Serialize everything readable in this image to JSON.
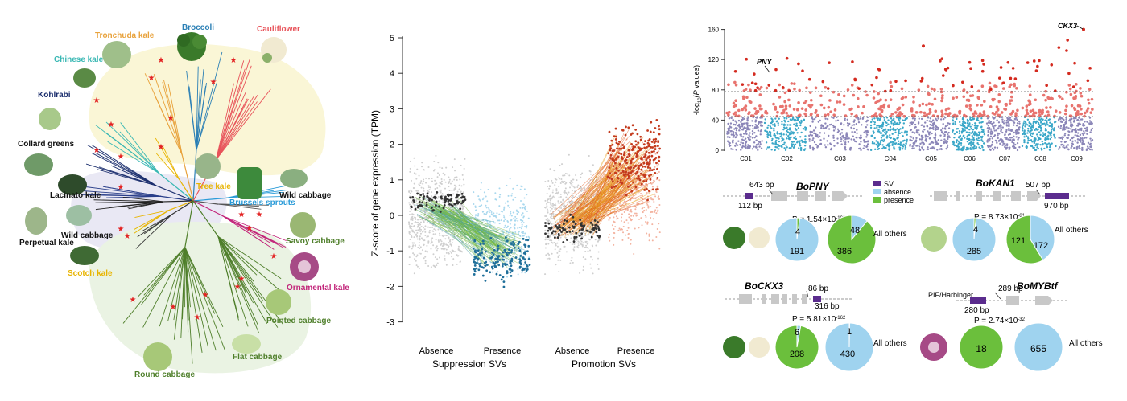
{
  "panel_a": {
    "labels": [
      {
        "text": "Tronchuda kale",
        "color": "#e8a23c"
      },
      {
        "text": "Broccoli",
        "color": "#2a7fb5"
      },
      {
        "text": "Cauliflower",
        "color": "#e8535a"
      },
      {
        "text": "Chinese kale",
        "color": "#3ab8b4"
      },
      {
        "text": "Kohlrabi",
        "color": "#1c2f6e"
      },
      {
        "text": "Collard greens",
        "color": "#111111"
      },
      {
        "text": "Tree kale",
        "color": "#e8b400"
      },
      {
        "text": "Lacinato kale",
        "color": "#111111"
      },
      {
        "text": "Brussels sprouts",
        "color": "#2a9bd8"
      },
      {
        "text": "Wild cabbage",
        "color": "#111111"
      },
      {
        "text": "Wild cabbage",
        "color": "#111111"
      },
      {
        "text": "Perpetual kale",
        "color": "#111111"
      },
      {
        "text": "Savoy cabbage",
        "color": "#4f7f2b"
      },
      {
        "text": "Scotch kale",
        "color": "#e8b400"
      },
      {
        "text": "Ornamental kale",
        "color": "#c2257a"
      },
      {
        "text": "Pointed cabbage",
        "color": "#4f7f2b"
      },
      {
        "text": "Flat cabbage",
        "color": "#4f7f2b"
      },
      {
        "text": "Round cabbage",
        "color": "#4f7f2b"
      }
    ]
  },
  "panel_b": {
    "y_ticks": [
      "5",
      "4",
      "3",
      "2",
      "1",
      "0",
      "-1",
      "-2",
      "-3"
    ],
    "ylabel": "Z-score of gene expression (TPM)",
    "sub_labels": [
      "Absence",
      "Presence",
      "Absence",
      "Presence"
    ],
    "group_labels": [
      "Suppression SVs",
      "Promotion SVs"
    ]
  },
  "panel_c": {
    "ylabel": "-log10(P values)",
    "y_ticks": [
      "160",
      "120",
      "80",
      "40",
      "0"
    ],
    "chromosomes": [
      "C01",
      "C02",
      "C03",
      "C04",
      "C05",
      "C06",
      "C07",
      "C08",
      "C09"
    ],
    "annotations": [
      "PNY",
      "CKX3"
    ],
    "colors": {
      "odd": "#8b86b8",
      "even": "#3aa7c8",
      "sig": "#e8736e",
      "top": "#d42a1f"
    }
  },
  "panel_d": {
    "legend": [
      "SV",
      "absence",
      "presence"
    ],
    "blocks": [
      {
        "gene": "BoPNY",
        "sv1": "643 bp",
        "sv2": "112 bp",
        "p": "P = 1.54×10",
        "p_exp": "-108",
        "pie1": [
          "4",
          "191"
        ],
        "pie2": [
          "48",
          "386"
        ],
        "others": "All others"
      },
      {
        "gene": "BoKAN1",
        "sv1": "507 bp",
        "sv2": "970 bp",
        "p": "P = 8.73×10",
        "p_exp": "-61",
        "pie1": [
          "4",
          "285"
        ],
        "pie2": [
          "121",
          "172"
        ],
        "others": "All others"
      },
      {
        "gene": "BoCKX3",
        "sv1": "86 bp",
        "sv2": "316 bp",
        "p": "P = 5.81×10",
        "p_exp": "-162",
        "pie1": [
          "6",
          "208"
        ],
        "pie2": [
          "1",
          "430"
        ],
        "others": "All others"
      },
      {
        "gene": "BoMYBtf",
        "sv1": "289 bp",
        "sv2": "280 bp",
        "extra": "PIF/Harbinger",
        "p": "P = 2.74×10",
        "p_exp": "-32",
        "pie1": [
          "18"
        ],
        "pie2": [
          "655"
        ],
        "others": "All others"
      }
    ]
  }
}
